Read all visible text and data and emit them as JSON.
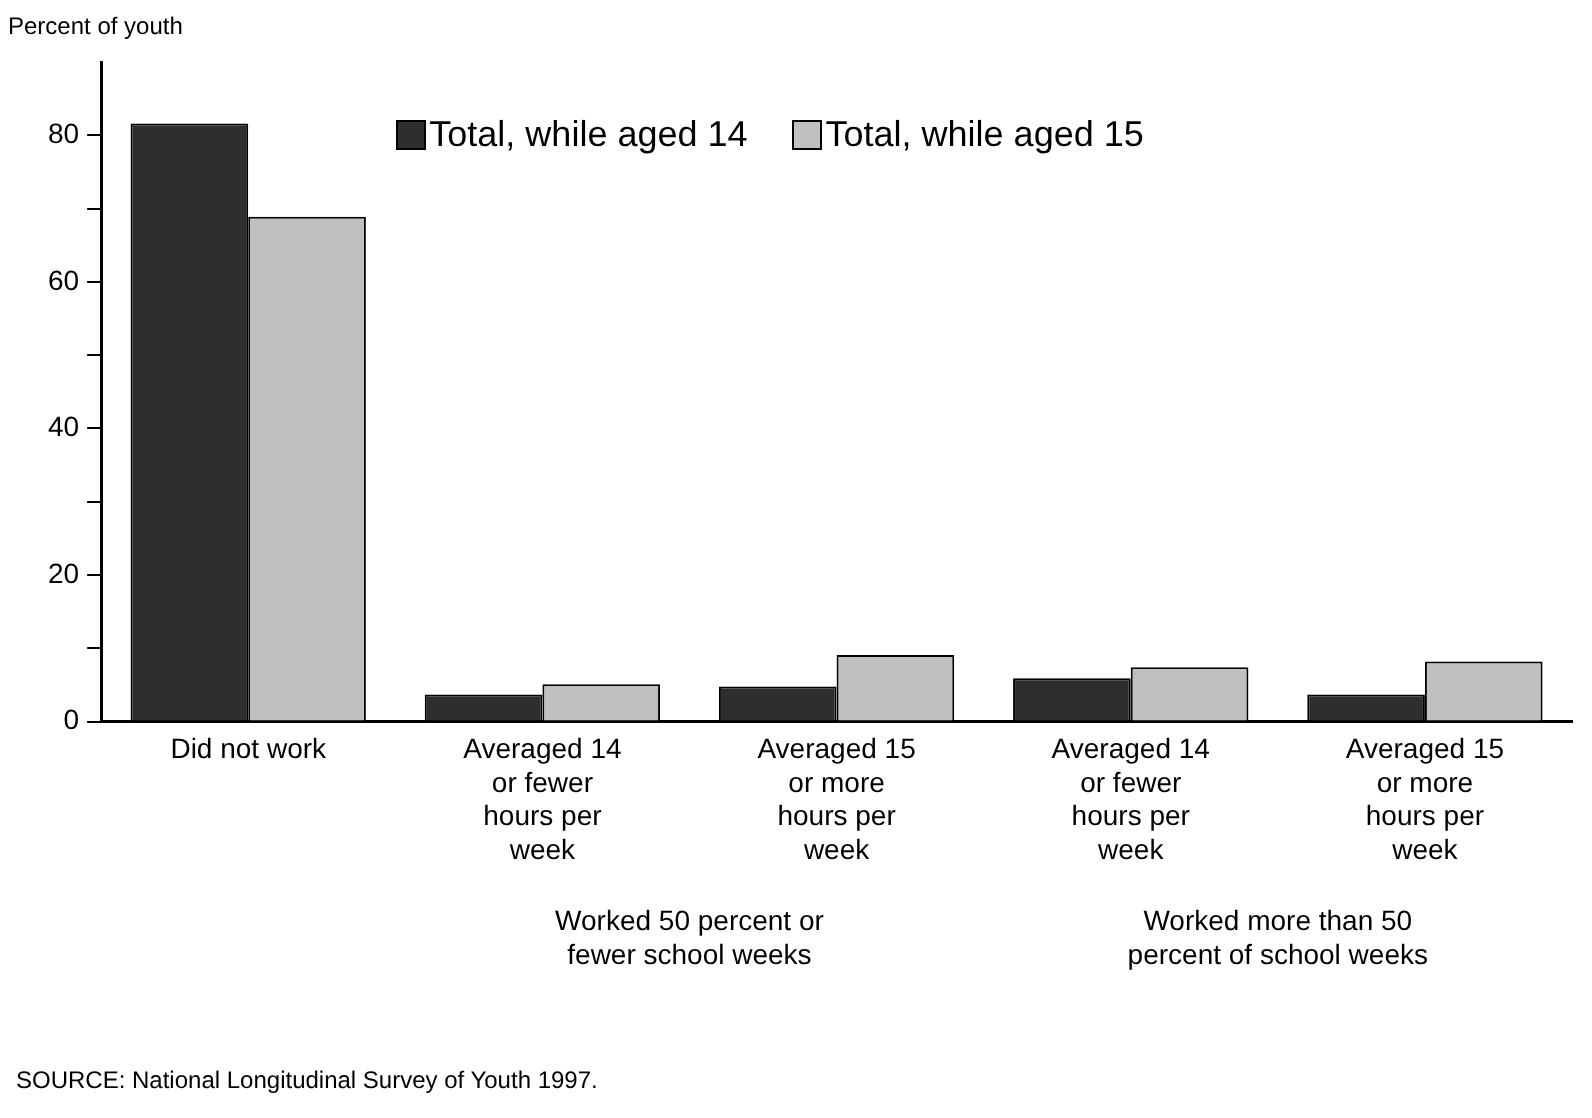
{
  "chart_data": {
    "type": "bar",
    "ylabel": "Percent of youth",
    "categories": [
      "Did not work",
      "Averaged 14 or fewer hours per week",
      "Averaged 15 or more hours per week",
      "Averaged 14 or fewer hours per week",
      "Averaged 15 or more hours per week"
    ],
    "series": [
      {
        "name": "Total, while aged 14",
        "color": "#2e2e2e",
        "values": [
          81.6,
          3.7,
          4.8,
          5.9,
          3.7
        ]
      },
      {
        "name": "Total, while aged 15",
        "color": "#c0c0c0",
        "values": [
          68.9,
          5.1,
          9.1,
          7.4,
          8.2
        ]
      }
    ],
    "ylim": [
      0,
      90
    ],
    "yticks": [
      0,
      {
        "value": 10,
        "label": null
      },
      20,
      {
        "value": 30,
        "label": null
      },
      40,
      {
        "value": 50,
        "label": null
      },
      60,
      {
        "value": 70,
        "label": null
      },
      80
    ],
    "grid": false,
    "legend": "top right",
    "annotations": [
      "Worked 50 percent or fewer school weeks",
      "Worked more than 50 percent of school weeks",
      "SOURCE:  National Longitudinal Survey of Youth 1997."
    ]
  }
}
